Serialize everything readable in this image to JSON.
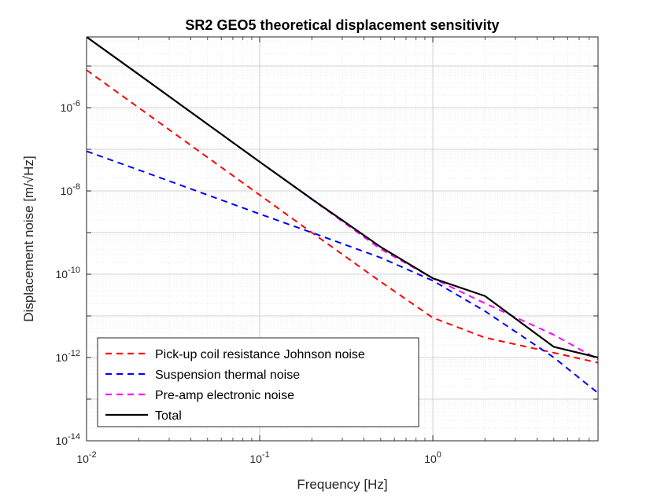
{
  "chart_data": {
    "type": "line",
    "title": "SR2 GEO5 theoretical displacement sensitivity",
    "xlabel": "Frequency [Hz]",
    "ylabel": "Displacement noise [m/√Hz]",
    "xscale": "log",
    "yscale": "log",
    "xlim": [
      0.01,
      9
    ],
    "ylim": [
      1e-14,
      5e-05
    ],
    "grid": true,
    "minor_grid": true,
    "legend_position": "bottom-left",
    "x_ticks": [
      {
        "base": "10",
        "exp": "-2",
        "value": 0.01
      },
      {
        "base": "10",
        "exp": "-1",
        "value": 0.1
      },
      {
        "base": "10",
        "exp": "0",
        "value": 1
      }
    ],
    "y_ticks": [
      {
        "base": "10",
        "exp": "-6",
        "value": 1e-06
      },
      {
        "base": "10",
        "exp": "-8",
        "value": 1e-08
      },
      {
        "base": "10",
        "exp": "-10",
        "value": 1e-10
      },
      {
        "base": "10",
        "exp": "-12",
        "value": 1e-12
      },
      {
        "base": "10",
        "exp": "-14",
        "value": 1e-14
      }
    ],
    "series": [
      {
        "name": "Pick-up coil resistance Johnson noise",
        "color": "#ff0000",
        "style": "dashed",
        "x": [
          0.01,
          0.02,
          0.05,
          0.1,
          0.2,
          0.5,
          1,
          2,
          5,
          9
        ],
        "y": [
          8e-06,
          1e-06,
          6.4e-08,
          8e-09,
          1e-09,
          6.6e-11,
          9e-12,
          3e-12,
          1.3e-12,
          7.5e-13
        ]
      },
      {
        "name": "Suspension thermal noise",
        "color": "#0000ff",
        "style": "dashed",
        "x": [
          0.01,
          0.02,
          0.05,
          0.1,
          0.2,
          0.5,
          1,
          2,
          5,
          9
        ],
        "y": [
          9e-08,
          3.2e-08,
          8e-09,
          2.8e-09,
          1e-09,
          2.5e-10,
          7e-11,
          1.3e-11,
          1e-12,
          1.4e-13
        ]
      },
      {
        "name": "Pre-amp electronic noise",
        "color": "#ff00ff",
        "style": "dashed",
        "x": [
          0.01,
          0.02,
          0.05,
          0.1,
          0.2,
          0.5,
          1,
          2,
          5,
          9
        ],
        "y": [
          5e-05,
          6.3e-06,
          4e-07,
          5e-08,
          6.3e-09,
          4e-10,
          8e-11,
          2e-11,
          3.5e-12,
          9e-13
        ]
      }
    ],
    "total": {
      "name": "Total",
      "color": "#000000",
      "style": "solid",
      "x": [
        0.01,
        0.02,
        0.05,
        0.1,
        0.2,
        0.5,
        1,
        2,
        5,
        9
      ],
      "y": [
        5e-05,
        6.3e-06,
        4e-07,
        5e-08,
        6.4e-09,
        4.5e-10,
        8e-11,
        3e-11,
        1.8e-12,
        1e-12
      ]
    }
  }
}
